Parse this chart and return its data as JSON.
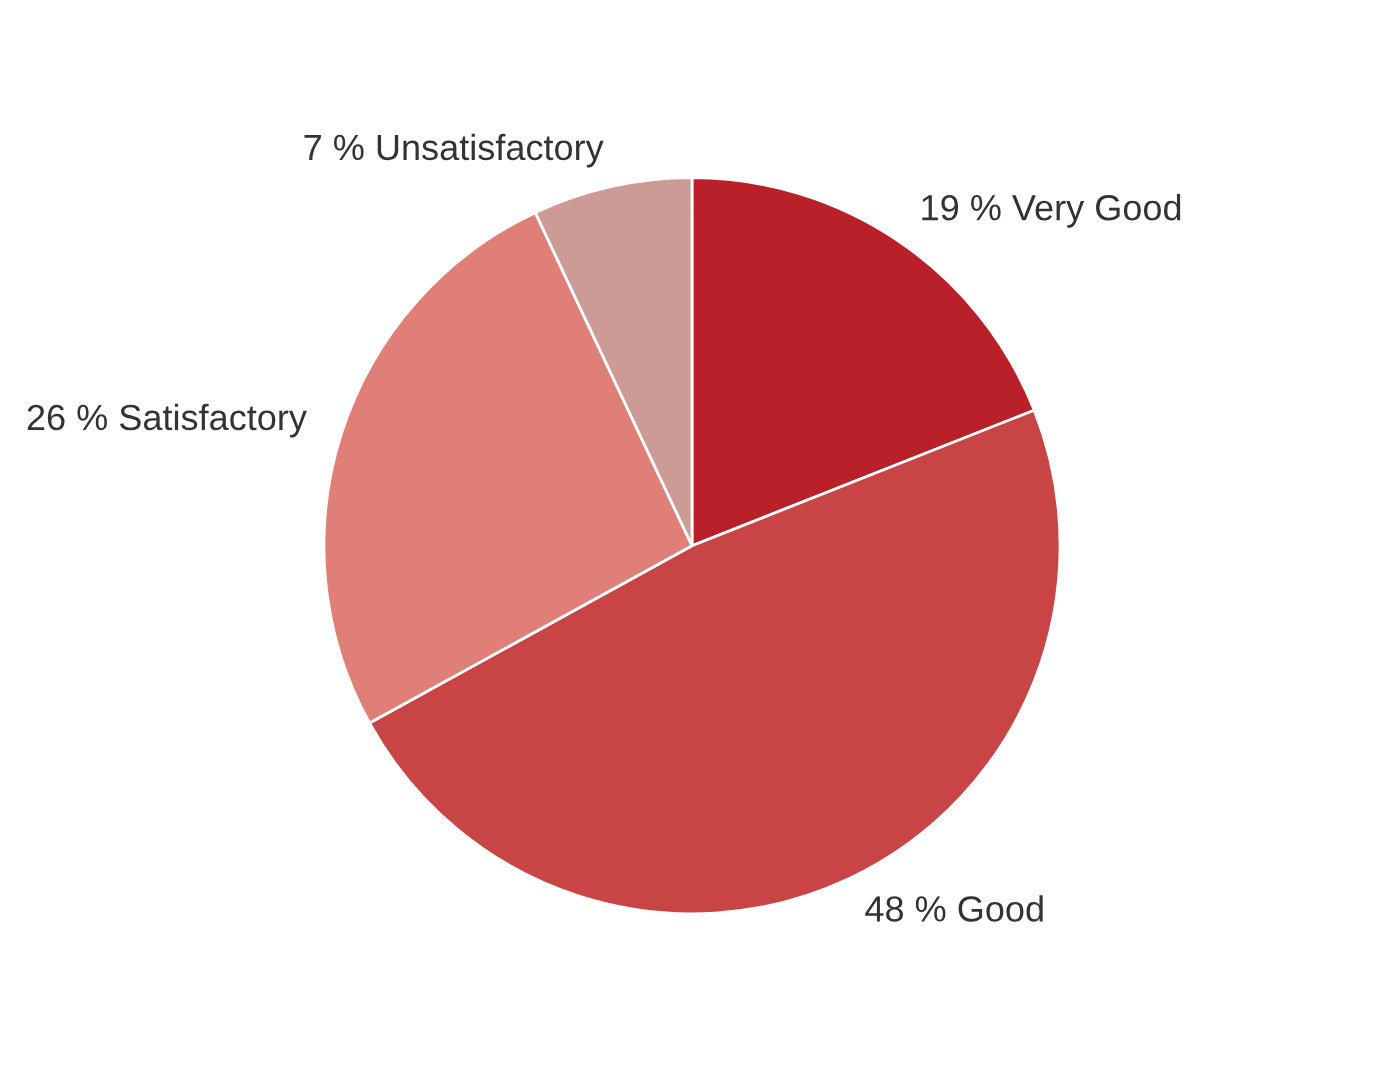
{
  "chart_data": {
    "type": "pie",
    "categories": [
      "Very Good",
      "Good",
      "Satisfactory",
      "Unsatisfactory"
    ],
    "values": [
      19,
      48,
      26,
      7
    ],
    "value_labels": [
      "19 %",
      "48 %",
      "26 %",
      "7 %"
    ],
    "colors": [
      "#b92029",
      "#c94444",
      "#e07f78",
      "#cc9b96"
    ]
  }
}
